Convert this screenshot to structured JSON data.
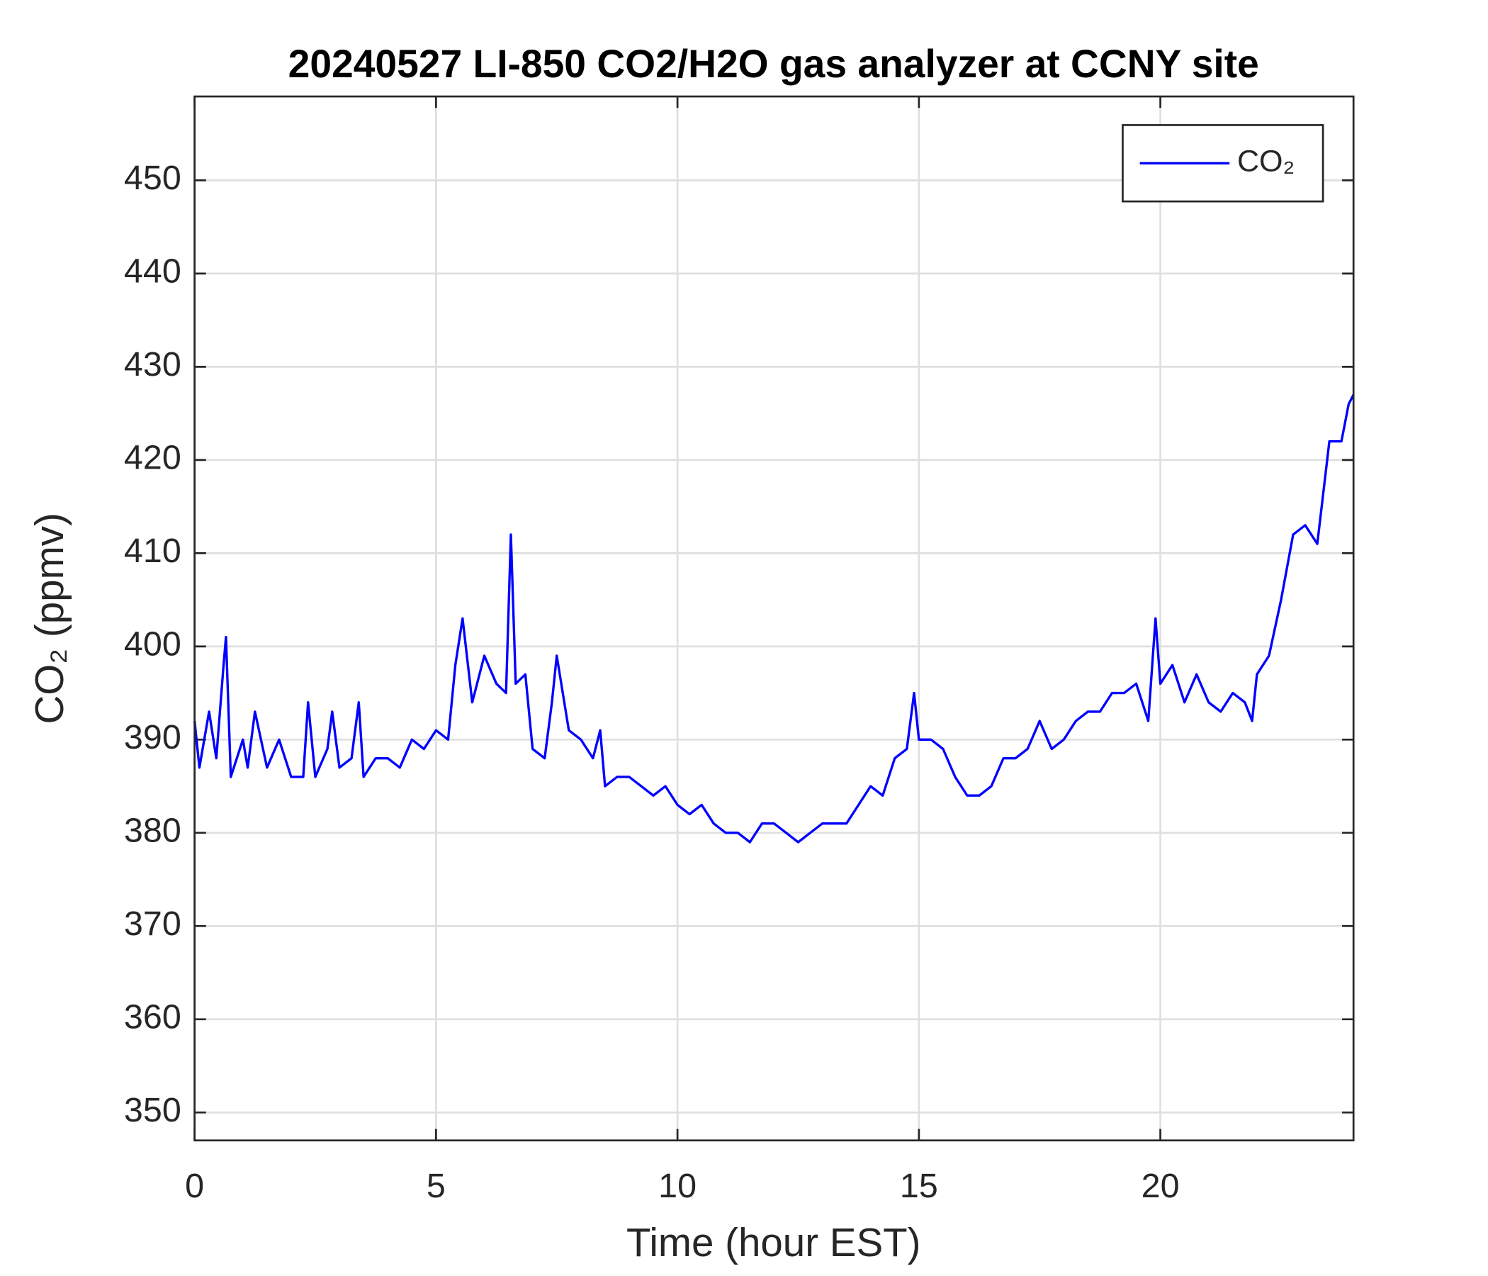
{
  "chart_data": {
    "type": "line",
    "title": "20240527 LI-850 CO2/H2O gas analyzer at CCNY site",
    "xlabel": "Time (hour EST)",
    "ylabel": "CO₂ (ppmv)",
    "x": [
      0,
      0.1,
      0.3,
      0.45,
      0.6,
      0.65,
      0.75,
      1.0,
      1.1,
      1.25,
      1.5,
      1.75,
      2.0,
      2.25,
      2.35,
      2.5,
      2.75,
      2.85,
      3.0,
      3.25,
      3.4,
      3.5,
      3.75,
      4.0,
      4.25,
      4.5,
      4.75,
      5.0,
      5.25,
      5.4,
      5.55,
      5.75,
      6.0,
      6.25,
      6.45,
      6.55,
      6.65,
      6.85,
      7.0,
      7.25,
      7.4,
      7.5,
      7.75,
      8.0,
      8.25,
      8.4,
      8.5,
      8.75,
      9.0,
      9.25,
      9.5,
      9.75,
      10.0,
      10.25,
      10.5,
      10.75,
      11.0,
      11.25,
      11.5,
      11.75,
      12.0,
      12.25,
      12.5,
      12.75,
      13.0,
      13.25,
      13.5,
      13.75,
      14.0,
      14.25,
      14.5,
      14.75,
      14.9,
      15.0,
      15.25,
      15.5,
      15.75,
      16.0,
      16.25,
      16.5,
      16.75,
      17.0,
      17.25,
      17.5,
      17.75,
      18.0,
      18.25,
      18.5,
      18.75,
      19.0,
      19.25,
      19.5,
      19.75,
      19.9,
      20.0,
      20.25,
      20.5,
      20.75,
      21.0,
      21.25,
      21.5,
      21.75,
      21.9,
      22.0,
      22.25,
      22.5,
      22.75,
      23.0,
      23.25,
      23.5,
      23.75,
      23.9,
      24.0
    ],
    "series": [
      {
        "name": "CO₂",
        "color": "#0000ff",
        "values": [
          392,
          387,
          393,
          388,
          398,
          401,
          386,
          390,
          387,
          393,
          387,
          390,
          386,
          386,
          394,
          386,
          389,
          393,
          387,
          388,
          394,
          386,
          388,
          388,
          387,
          390,
          389,
          391,
          390,
          398,
          403,
          394,
          399,
          396,
          395,
          412,
          396,
          397,
          389,
          388,
          394,
          399,
          391,
          390,
          388,
          391,
          385,
          386,
          386,
          385,
          384,
          385,
          383,
          382,
          383,
          381,
          380,
          380,
          379,
          381,
          381,
          380,
          379,
          380,
          381,
          381,
          381,
          383,
          385,
          384,
          388,
          389,
          395,
          390,
          390,
          389,
          386,
          384,
          384,
          385,
          388,
          388,
          389,
          392,
          389,
          390,
          392,
          393,
          393,
          395,
          395,
          396,
          392,
          403,
          396,
          398,
          394,
          397,
          394,
          393,
          395,
          394,
          392,
          397,
          399,
          405,
          412,
          413,
          411,
          422,
          422,
          426,
          427
        ]
      }
    ],
    "xlim": [
      0,
      24
    ],
    "xticks": [
      0,
      5,
      10,
      15,
      20
    ],
    "ylim": [
      347,
      459
    ],
    "yticks": [
      350,
      360,
      370,
      380,
      390,
      400,
      410,
      420,
      430,
      440,
      450
    ],
    "grid": true,
    "legend": "northeast"
  }
}
